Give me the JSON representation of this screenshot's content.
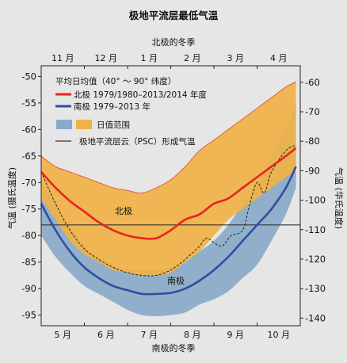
{
  "chart_data": {
    "type": "line",
    "title": "极地平流层最低气温",
    "top_axis_label": "北极的冬季",
    "bottom_axis_label": "南极的冬季",
    "ylabel_left": "气温 (摄氏温度)",
    "ylabel_right": "气温 (华氏温度)",
    "top_months": [
      "11 月",
      "12 月",
      "1 月",
      "2 月",
      "3 月",
      "4 月"
    ],
    "bottom_months": [
      "5 月",
      "6 月",
      "7 月",
      "8 月",
      "9 月",
      "10 月"
    ],
    "x_unit": "days from start of winter",
    "xlim": [
      0,
      180
    ],
    "ylim_celsius": [
      -97,
      -48
    ],
    "left_ticks": [
      -50,
      -55,
      -60,
      -65,
      -70,
      -75,
      -80,
      -85,
      -90,
      -95
    ],
    "right_ticks": [
      -60,
      -70,
      -80,
      -90,
      -100,
      -110,
      -120,
      -130,
      -140
    ],
    "grid": false,
    "legend_position": "top-left",
    "legend": {
      "heading": "平均日均值（40° ～ 90° 纬度）",
      "arctic": "北极 1979/1980–2013/2014 年度",
      "antarctic": "南极 1979–2013 年",
      "range": "日值范围",
      "psc": "极地平流层云（PSC）形成气温"
    },
    "annotations": {
      "arctic_label": "北极",
      "antarctic_label": "南极"
    },
    "colors": {
      "background": "#e6e6e6",
      "arctic_line": "#e8241c",
      "antarctic_line": "#2c4fa0",
      "arctic_range": "#f0b246",
      "antarctic_range": "#8aaac8",
      "psc_line": "#333333"
    },
    "psc_temperature": -78,
    "series": [
      {
        "name": "北极 1979/1980–2013/2014 年度",
        "x": [
          0,
          10,
          20,
          30,
          40,
          50,
          60,
          70,
          80,
          90,
          100,
          110,
          120,
          130,
          140,
          150,
          160,
          170,
          177
        ],
        "values": [
          -68,
          -71,
          -73.5,
          -75.5,
          -77.5,
          -79,
          -80,
          -80.5,
          -80.5,
          -79,
          -77,
          -76,
          -74,
          -73,
          -71,
          -69,
          -67,
          -65,
          -63.5
        ]
      },
      {
        "name": "南极 1979–2013 年",
        "x": [
          0,
          10,
          20,
          30,
          40,
          50,
          60,
          70,
          80,
          90,
          100,
          110,
          120,
          130,
          140,
          150,
          160,
          170,
          177
        ],
        "values": [
          -74,
          -79,
          -83,
          -86,
          -88,
          -89.5,
          -90.3,
          -91,
          -91,
          -90.8,
          -90,
          -88.5,
          -86.5,
          -84,
          -81,
          -78,
          -75,
          -71,
          -67
        ]
      },
      {
        "name": "arctic_min",
        "x": [
          0,
          10,
          20,
          30,
          40,
          50,
          60,
          70,
          80,
          90,
          100,
          110,
          120,
          130,
          140,
          150,
          160,
          170,
          177
        ],
        "values": [
          -73,
          -77,
          -81,
          -83.5,
          -85,
          -86.5,
          -87,
          -87.5,
          -87.5,
          -87,
          -85,
          -83,
          -80,
          -77,
          -75,
          -73,
          -71,
          -69,
          -68
        ]
      },
      {
        "name": "arctic_max",
        "x": [
          0,
          10,
          20,
          30,
          40,
          50,
          60,
          70,
          80,
          90,
          100,
          110,
          120,
          130,
          140,
          150,
          160,
          170,
          177
        ],
        "values": [
          -65,
          -67,
          -68,
          -69,
          -70,
          -71,
          -71.5,
          -72,
          -71,
          -69.5,
          -67,
          -64,
          -62,
          -60,
          -58,
          -56,
          -54,
          -52,
          -51
        ]
      },
      {
        "name": "antarctic_min",
        "x": [
          0,
          10,
          20,
          30,
          40,
          50,
          60,
          70,
          80,
          90,
          100,
          110,
          120,
          130,
          140,
          150,
          160,
          170,
          177
        ],
        "values": [
          -80,
          -84,
          -87,
          -89.5,
          -91,
          -92.5,
          -94,
          -95,
          -95.2,
          -95,
          -94.5,
          -93,
          -92,
          -90.5,
          -88,
          -85.5,
          -81,
          -76,
          -71
        ]
      },
      {
        "name": "antarctic_max",
        "x": [
          0,
          10,
          20,
          30,
          40,
          50,
          60,
          70,
          80,
          90,
          100,
          110,
          120,
          130,
          140,
          150,
          160,
          170,
          177
        ],
        "values": [
          -70,
          -74,
          -78,
          -82,
          -84,
          -85.5,
          -86.5,
          -86.5,
          -86.5,
          -86,
          -85,
          -83,
          -81,
          -78,
          -74,
          -70,
          -65,
          -60,
          -55
        ]
      },
      {
        "name": "arctic_extreme_dashed",
        "x": [
          0,
          10,
          20,
          30,
          40,
          50,
          60,
          70,
          80,
          90,
          100,
          110,
          115,
          125,
          132,
          140,
          145,
          150,
          155,
          160,
          170,
          177
        ],
        "values": [
          -68,
          -74,
          -79,
          -82.5,
          -84.5,
          -86,
          -87,
          -87.5,
          -87.5,
          -86.5,
          -84.5,
          -82,
          -80.5,
          -82,
          -80,
          -79,
          -74,
          -70,
          -72,
          -68,
          -64,
          -63
        ]
      }
    ]
  }
}
